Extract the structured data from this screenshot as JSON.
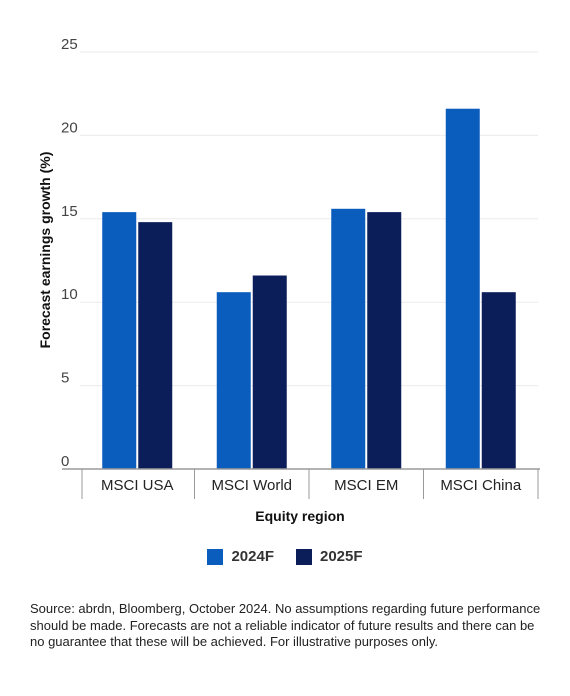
{
  "chart_data": {
    "type": "bar",
    "categories": [
      "MSCI USA",
      "MSCI World",
      "MSCI EM",
      "MSCI China"
    ],
    "series": [
      {
        "name": "2024F",
        "color": "#0a5cbd",
        "values": [
          15.4,
          10.6,
          15.6,
          21.6
        ]
      },
      {
        "name": "2025F",
        "color": "#0c1e5a",
        "values": [
          14.8,
          11.6,
          15.4,
          10.6
        ]
      }
    ],
    "xlabel": "Equity region",
    "ylabel": "Forecast earnings growth (%)",
    "ylim": [
      0,
      25
    ],
    "yticks": [
      0,
      5,
      10,
      15,
      20,
      25
    ],
    "grid": true,
    "legend": "bottom-center"
  },
  "source_note": "Source: abrdn, Bloomberg, October 2024. No assumptions regarding future performance should be made. Forecasts are not a reliable indicator of future results and there can be no guarantee that these will be achieved. For illustrative purposes only."
}
